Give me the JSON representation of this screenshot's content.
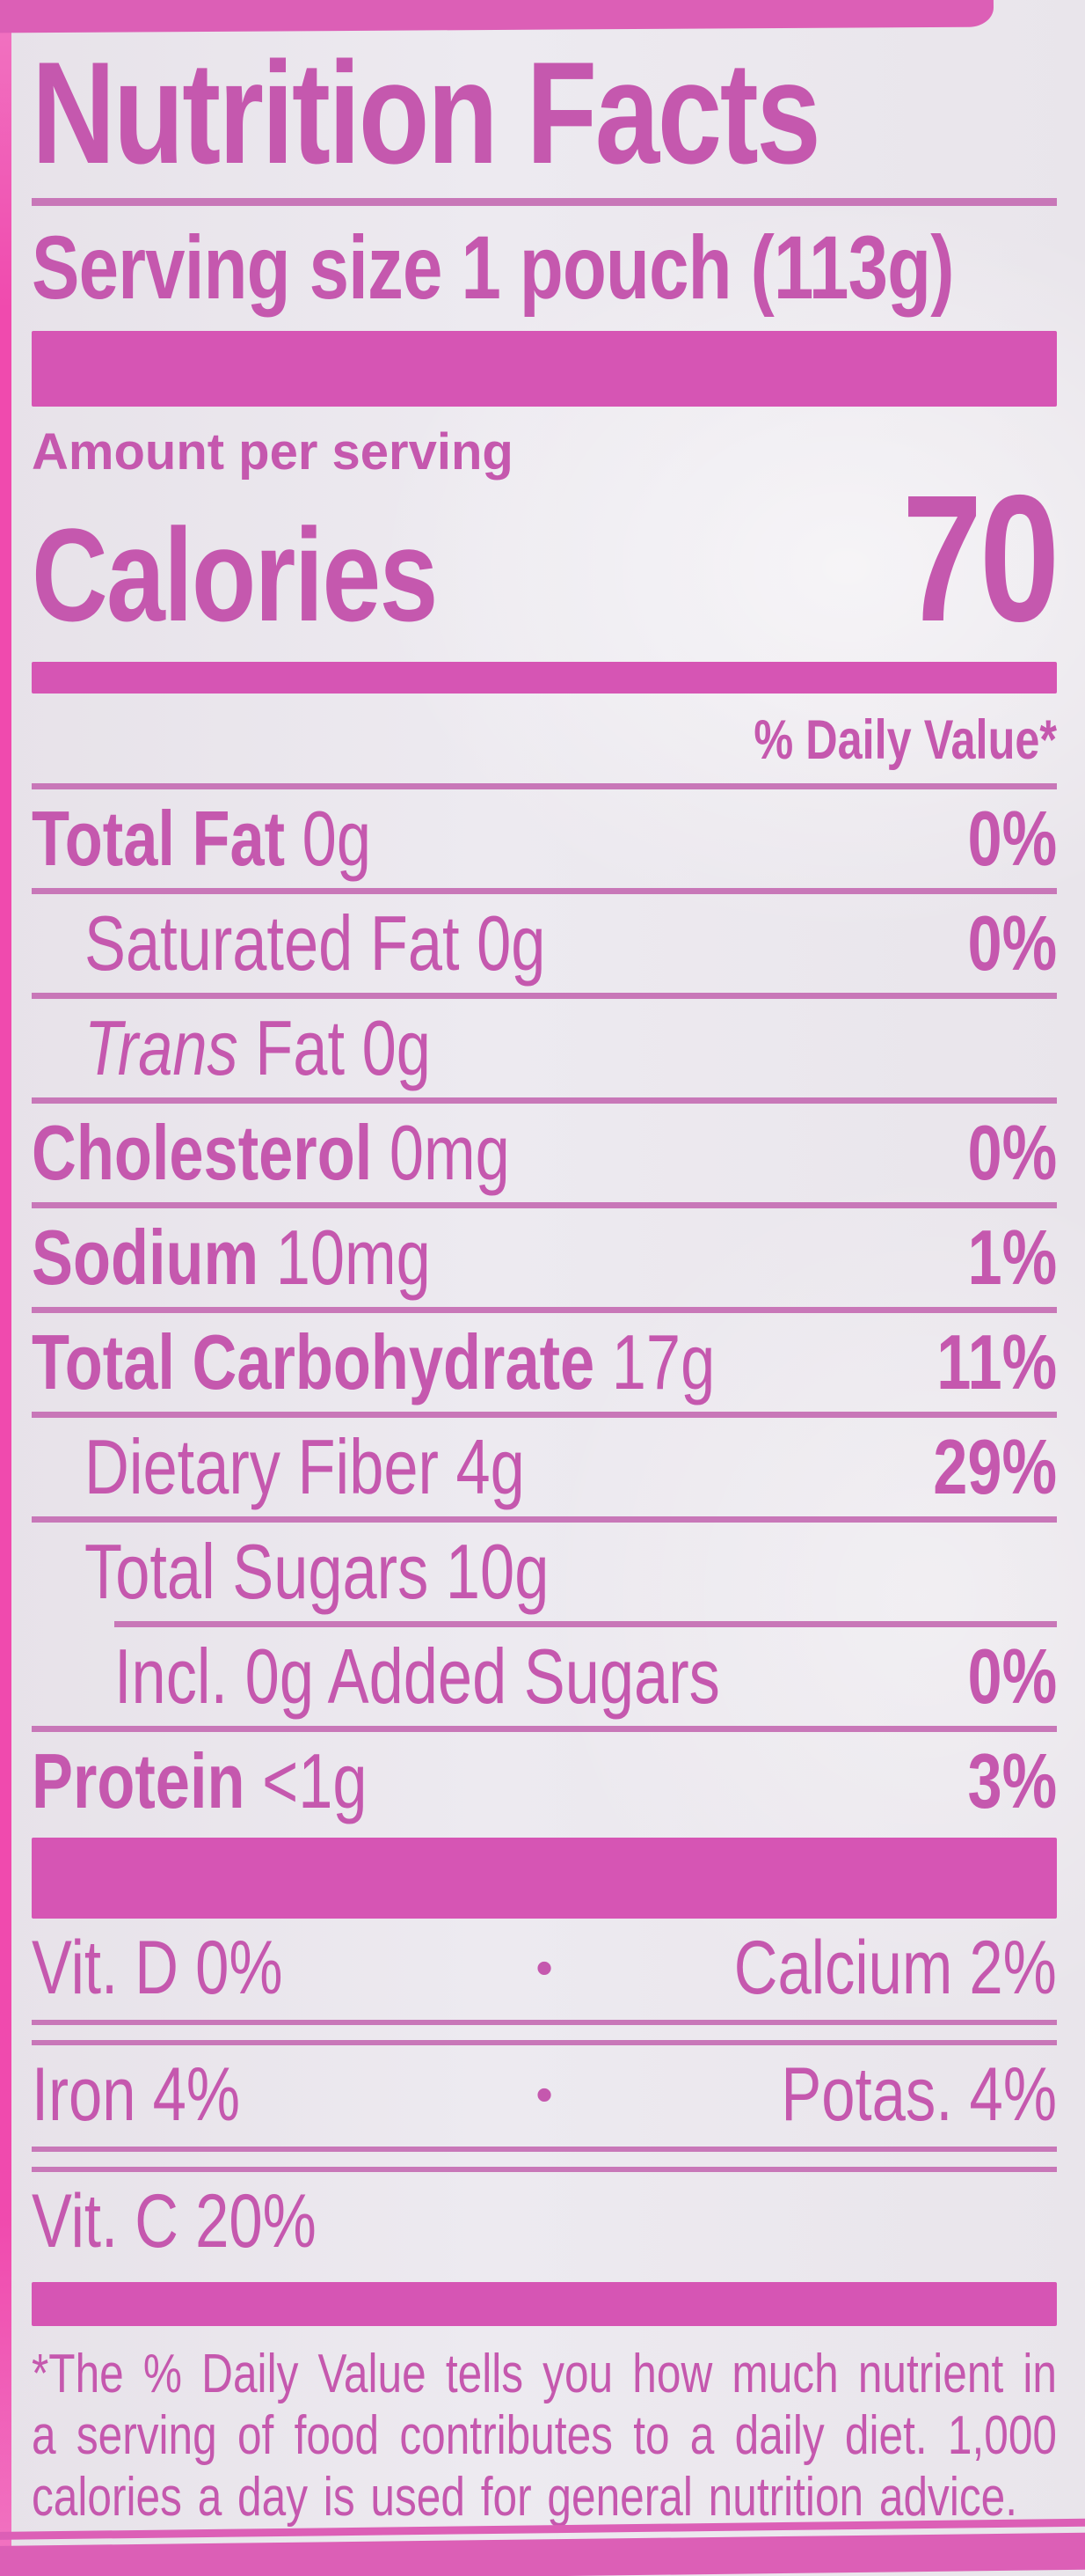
{
  "colors": {
    "paper": "#eae6ec",
    "ink": "#c558ae",
    "bar": "#d655b4",
    "rule": "#c877b8",
    "strip": "#f04aae",
    "band": "#dc5fb6"
  },
  "label": {
    "title": "Nutrition Facts",
    "serving_size": "Serving size 1 pouch (113g)",
    "amount_per_serving": "Amount per serving",
    "calories_label": "Calories",
    "calories_value": "70",
    "daily_value_header": "% Daily Value*",
    "rows": [
      {
        "name": "Total Fat",
        "amount": "0g",
        "dv": "0%"
      },
      {
        "name": "Saturated Fat",
        "amount": "0g",
        "dv": "0%"
      },
      {
        "name": "Trans",
        "amount": "Fat 0g",
        "dv": ""
      },
      {
        "name": "Cholesterol",
        "amount": "0mg",
        "dv": "0%"
      },
      {
        "name": "Sodium",
        "amount": "10mg",
        "dv": "1%"
      },
      {
        "name": "Total Carbohydrate",
        "amount": "17g",
        "dv": "11%"
      },
      {
        "name": "Dietary Fiber",
        "amount": "4g",
        "dv": "29%"
      },
      {
        "name": "Total Sugars",
        "amount": "10g",
        "dv": ""
      },
      {
        "name": "Incl. 0g Added Sugars",
        "amount": "",
        "dv": "0%"
      },
      {
        "name": "Protein",
        "amount": "<1g",
        "dv": "3%"
      }
    ],
    "micros": [
      {
        "left": "Vit. D 0%",
        "bullet": "•",
        "right": "Calcium 2%"
      },
      {
        "left": "Iron 4%",
        "bullet": "•",
        "right": "Potas. 4%"
      },
      {
        "left": "Vit. C 20%",
        "bullet": "",
        "right": ""
      }
    ],
    "footnote": "*The % Daily Value tells you how much nutrient in a serving of food contributes to a daily diet. 1,000 calories a day is used for general nutrition advice."
  }
}
